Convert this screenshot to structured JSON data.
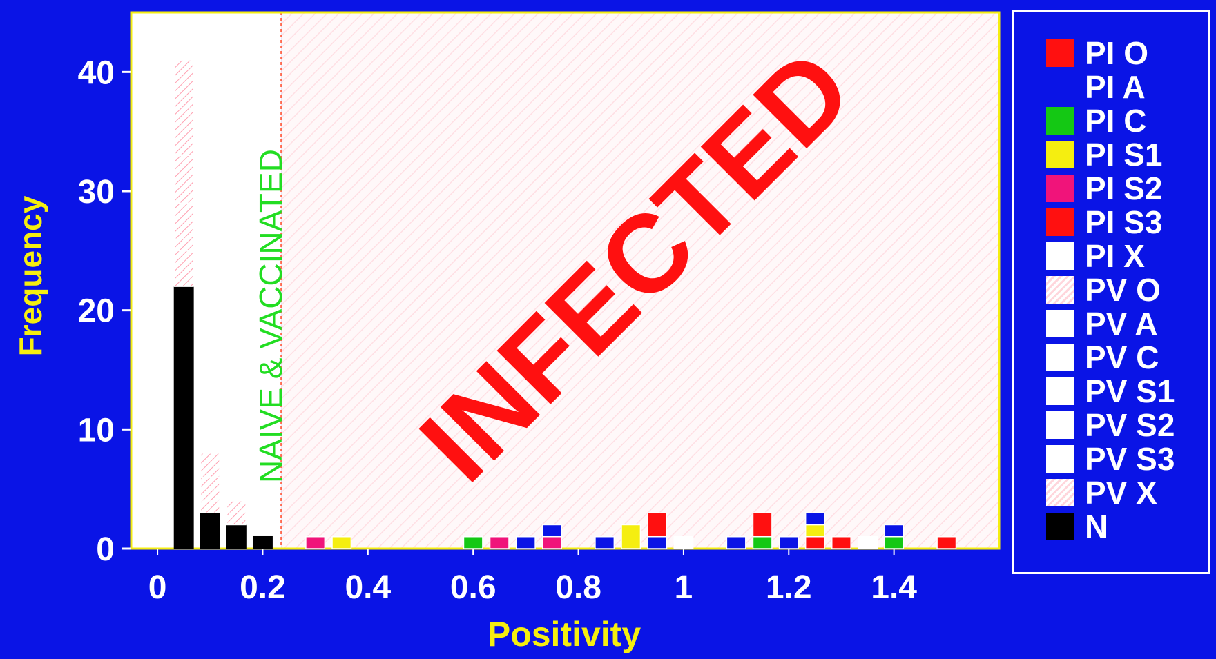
{
  "chart_data": {
    "type": "bar",
    "stacked": true,
    "title": "",
    "xlabel": "Positivity",
    "ylabel": "Frequency",
    "xlim": [
      -0.05,
      1.6
    ],
    "ylim": [
      0,
      45
    ],
    "x_ticks": [
      "0",
      "0.2",
      "0.4",
      "0.6",
      "0.8",
      "1",
      "1.2",
      "1.4"
    ],
    "x_tick_values": [
      0,
      0.2,
      0.4,
      0.6,
      0.8,
      1,
      1.2,
      1.4
    ],
    "y_ticks": [
      "0",
      "10",
      "20",
      "30",
      "40"
    ],
    "y_tick_values": [
      0,
      10,
      20,
      30,
      40
    ],
    "bin_width": 0.05,
    "grid": false,
    "cutoff": 0.235,
    "annotations": {
      "naive_vaccinated": "NAIVE & VACCINATED",
      "infected": "INFECTED"
    },
    "series": [
      {
        "name": "PI O",
        "color": "#ff1010",
        "fill": "solid"
      },
      {
        "name": "PI A",
        "color": "#0a14e6",
        "fill": "solid"
      },
      {
        "name": "PI C",
        "color": "#14c814",
        "fill": "solid"
      },
      {
        "name": "PI S1",
        "color": "#f5ee10",
        "fill": "solid"
      },
      {
        "name": "PI S2",
        "color": "#f0147a",
        "fill": "solid"
      },
      {
        "name": "PI S3",
        "color": "#ff1010",
        "fill": "solid"
      },
      {
        "name": "PI X",
        "color": "#ffffff",
        "fill": "solid"
      },
      {
        "name": "PV O",
        "color": "#ffd6dc",
        "fill": "hatch"
      },
      {
        "name": "PV A",
        "color": "#ffffff",
        "fill": "solid"
      },
      {
        "name": "PV C",
        "color": "#ffffff",
        "fill": "solid"
      },
      {
        "name": "PV S1",
        "color": "#ffffff",
        "fill": "solid"
      },
      {
        "name": "PV S2",
        "color": "#ffffff",
        "fill": "solid"
      },
      {
        "name": "PV S3",
        "color": "#ffffff",
        "fill": "solid"
      },
      {
        "name": "PV X",
        "color": "#ffd6dc",
        "fill": "hatch"
      },
      {
        "name": "N",
        "color": "#000000",
        "fill": "solid"
      }
    ],
    "bins": [
      {
        "x": 0.05,
        "stack": [
          [
            "N",
            22
          ],
          [
            "PV X",
            3
          ],
          [
            "PV O",
            1
          ],
          [
            "PV X",
            3
          ],
          [
            "PV O",
            4
          ],
          [
            "PV X",
            4
          ],
          [
            "PV O",
            4
          ]
        ]
      },
      {
        "x": 0.1,
        "stack": [
          [
            "N",
            3
          ],
          [
            "PV X",
            1
          ],
          [
            "PV O",
            1
          ],
          [
            "PV X",
            1
          ],
          [
            "PV O",
            2
          ]
        ]
      },
      {
        "x": 0.15,
        "stack": [
          [
            "N",
            2
          ],
          [
            "PV X",
            1
          ],
          [
            "PV O",
            1
          ]
        ]
      },
      {
        "x": 0.2,
        "stack": [
          [
            "N",
            1
          ]
        ]
      },
      {
        "x": 0.3,
        "stack": [
          [
            "PI S2",
            1
          ]
        ]
      },
      {
        "x": 0.35,
        "stack": [
          [
            "PI S1",
            1
          ]
        ]
      },
      {
        "x": 0.6,
        "stack": [
          [
            "PI C",
            1
          ]
        ]
      },
      {
        "x": 0.65,
        "stack": [
          [
            "PI S2",
            1
          ]
        ]
      },
      {
        "x": 0.7,
        "stack": [
          [
            "PI A",
            1
          ]
        ]
      },
      {
        "x": 0.75,
        "stack": [
          [
            "PI S2",
            1
          ],
          [
            "PI A",
            1
          ]
        ]
      },
      {
        "x": 0.85,
        "stack": [
          [
            "PI A",
            1
          ]
        ]
      },
      {
        "x": 0.9,
        "stack": [
          [
            "PI S1",
            2
          ]
        ]
      },
      {
        "x": 0.95,
        "stack": [
          [
            "PI A",
            1
          ],
          [
            "PI O",
            2
          ]
        ]
      },
      {
        "x": 1.0,
        "stack": [
          [
            "PI X",
            1
          ]
        ]
      },
      {
        "x": 1.1,
        "stack": [
          [
            "PI A",
            1
          ]
        ]
      },
      {
        "x": 1.15,
        "stack": [
          [
            "PI C",
            1
          ],
          [
            "PI O",
            2
          ]
        ]
      },
      {
        "x": 1.2,
        "stack": [
          [
            "PI A",
            1
          ]
        ]
      },
      {
        "x": 1.25,
        "stack": [
          [
            "PI O",
            1
          ],
          [
            "PI S1",
            1
          ],
          [
            "PI A",
            1
          ]
        ]
      },
      {
        "x": 1.3,
        "stack": [
          [
            "PI O",
            1
          ]
        ]
      },
      {
        "x": 1.35,
        "stack": [
          [
            "PI X",
            1
          ]
        ]
      },
      {
        "x": 1.4,
        "stack": [
          [
            "PI C",
            1
          ],
          [
            "PI A",
            1
          ]
        ]
      },
      {
        "x": 1.5,
        "stack": [
          [
            "PI O",
            1
          ]
        ]
      }
    ]
  },
  "colors": {
    "background": "#0a14e6",
    "axis_text": "#ffffff",
    "axis_title": "#f5ee10",
    "plot_bg_naive": "#ffffff",
    "plot_bg_infected": "#fff5f6",
    "naive_label": "#22dd22",
    "infected_label": "#ff1010"
  }
}
